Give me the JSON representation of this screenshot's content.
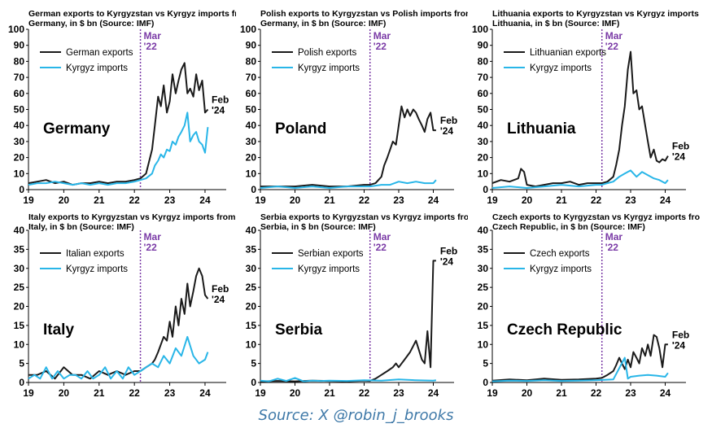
{
  "source": "Source: X @robin_j_brooks",
  "colors": {
    "exports": "#1a1a1a",
    "imports": "#29b6e8",
    "marker": "#7a3aa6",
    "text": "#000000"
  },
  "chart_data": [
    {
      "type": "line",
      "title": "German exports to Kyrgyzstan vs Kyrgyz imports from Germany, in $ bn (Source: IMF)",
      "country": "Germany",
      "ylim": [
        0,
        100
      ],
      "yticks": [
        0,
        10,
        20,
        30,
        40,
        50,
        60,
        70,
        80,
        90,
        100
      ],
      "xlim": [
        19,
        24.6
      ],
      "xticks": [
        "19",
        "20",
        "21",
        "22",
        "23",
        "24"
      ],
      "marker": {
        "x": 22.17,
        "label": [
          "Mar",
          "'22"
        ]
      },
      "end_label": [
        "Feb",
        "'24"
      ],
      "series": [
        {
          "name": "German exports",
          "x": [
            19.0,
            19.25,
            19.5,
            19.75,
            20.0,
            20.25,
            20.5,
            20.75,
            21.0,
            21.25,
            21.5,
            21.75,
            22.0,
            22.17,
            22.33,
            22.5,
            22.58,
            22.67,
            22.75,
            22.83,
            22.92,
            23.0,
            23.08,
            23.17,
            23.25,
            23.33,
            23.42,
            23.5,
            23.58,
            23.67,
            23.75,
            23.83,
            23.92,
            24.0,
            24.08
          ],
          "y": [
            4,
            5,
            6,
            4,
            5,
            3,
            4,
            4,
            5,
            4,
            5,
            5,
            6,
            7,
            10,
            25,
            40,
            58,
            52,
            65,
            48,
            55,
            72,
            60,
            68,
            75,
            79,
            60,
            63,
            58,
            72,
            62,
            68,
            48,
            50
          ]
        },
        {
          "name": "Kyrgyz imports",
          "x": [
            19.0,
            19.25,
            19.5,
            19.75,
            20.0,
            20.25,
            20.5,
            20.75,
            21.0,
            21.25,
            21.5,
            21.75,
            22.0,
            22.17,
            22.33,
            22.5,
            22.58,
            22.67,
            22.75,
            22.83,
            22.92,
            23.0,
            23.08,
            23.17,
            23.25,
            23.33,
            23.42,
            23.5,
            23.58,
            23.67,
            23.75,
            23.83,
            23.92,
            24.0,
            24.08
          ],
          "y": [
            3,
            4,
            4,
            5,
            4,
            3,
            4,
            3,
            4,
            3,
            4,
            4,
            5,
            6,
            7,
            10,
            15,
            18,
            22,
            20,
            25,
            24,
            30,
            28,
            33,
            36,
            40,
            48,
            30,
            34,
            36,
            30,
            28,
            23,
            39
          ]
        }
      ]
    },
    {
      "type": "line",
      "title": "Polish exports to Kyrgyzstan vs Polish imports from Germany, in $ bn (Source: IMF)",
      "country": "Poland",
      "ylim": [
        0,
        100
      ],
      "yticks": [
        0,
        10,
        20,
        30,
        40,
        50,
        60,
        70,
        80,
        90,
        100
      ],
      "xlim": [
        19,
        24.6
      ],
      "xticks": [
        "19",
        "20",
        "21",
        "22",
        "23",
        "24"
      ],
      "marker": {
        "x": 22.17,
        "label": [
          "Mar",
          "'22"
        ]
      },
      "end_label": [
        "Feb",
        "'24"
      ],
      "series": [
        {
          "name": "Polish exports",
          "x": [
            19.0,
            19.5,
            20.0,
            20.5,
            21.0,
            21.5,
            22.0,
            22.17,
            22.33,
            22.5,
            22.58,
            22.67,
            22.75,
            22.83,
            22.92,
            23.0,
            23.08,
            23.17,
            23.25,
            23.33,
            23.42,
            23.5,
            23.58,
            23.67,
            23.75,
            23.83,
            23.92,
            24.0,
            24.08
          ],
          "y": [
            2,
            2,
            2,
            3,
            2,
            2,
            3,
            3,
            4,
            8,
            15,
            20,
            25,
            30,
            28,
            40,
            52,
            45,
            50,
            46,
            50,
            48,
            44,
            40,
            36,
            44,
            48,
            37,
            37
          ]
        },
        {
          "name": "Kyrgyz imports",
          "x": [
            19.0,
            19.5,
            20.0,
            20.5,
            21.0,
            21.5,
            22.0,
            22.17,
            22.5,
            22.75,
            23.0,
            23.25,
            23.5,
            23.75,
            24.0,
            24.08
          ],
          "y": [
            1,
            2,
            1,
            2,
            1,
            2,
            2,
            2,
            3,
            3,
            5,
            4,
            5,
            4,
            4,
            6
          ]
        }
      ]
    },
    {
      "type": "line",
      "title": "Lithuania exports to Kyrgyzstan vs Kyrgyz imports from Lithuania, in $ bn (Source: IMF)",
      "country": "Lithuania",
      "ylim": [
        0,
        100
      ],
      "yticks": [
        0,
        10,
        20,
        30,
        40,
        50,
        60,
        70,
        80,
        90,
        100
      ],
      "xlim": [
        19,
        24.6
      ],
      "xticks": [
        "19",
        "20",
        "21",
        "22",
        "23",
        "24"
      ],
      "marker": {
        "x": 22.17,
        "label": [
          "Mar",
          "'22"
        ]
      },
      "end_label": [
        "Feb",
        "'24"
      ],
      "series": [
        {
          "name": "Lithuanian exports",
          "x": [
            19.0,
            19.25,
            19.5,
            19.75,
            19.83,
            19.92,
            20.0,
            20.25,
            20.5,
            20.75,
            21.0,
            21.25,
            21.5,
            21.75,
            22.0,
            22.17,
            22.33,
            22.5,
            22.58,
            22.67,
            22.75,
            22.83,
            22.92,
            23.0,
            23.08,
            23.17,
            23.25,
            23.33,
            23.42,
            23.5,
            23.58,
            23.67,
            23.75,
            23.83,
            23.92,
            24.0,
            24.08
          ],
          "y": [
            4,
            6,
            5,
            7,
            13,
            11,
            3,
            2,
            3,
            4,
            4,
            5,
            3,
            4,
            4,
            4,
            5,
            8,
            15,
            25,
            40,
            52,
            75,
            86,
            60,
            62,
            50,
            52,
            40,
            30,
            20,
            25,
            18,
            17,
            19,
            18,
            21
          ]
        },
        {
          "name": "Kyrgyz imports",
          "x": [
            19.0,
            19.5,
            20.0,
            20.5,
            21.0,
            21.5,
            22.0,
            22.17,
            22.33,
            22.5,
            22.67,
            22.83,
            23.0,
            23.17,
            23.33,
            23.5,
            23.67,
            23.83,
            24.0,
            24.08
          ],
          "y": [
            1,
            2,
            1,
            2,
            3,
            2,
            3,
            3,
            4,
            5,
            8,
            10,
            12,
            8,
            11,
            9,
            7,
            6,
            4,
            6
          ]
        }
      ]
    },
    {
      "type": "line",
      "title": "Italy exports to Kyrgyzstan vs Kyrgyz imports from Italy, in $ bn (Source: IMF)",
      "country": "Italy",
      "ylim": [
        0,
        40
      ],
      "yticks": [
        0,
        5,
        10,
        15,
        20,
        25,
        30,
        35,
        40
      ],
      "xlim": [
        19,
        24.6
      ],
      "xticks": [
        "19",
        "20",
        "21",
        "22",
        "23",
        "24"
      ],
      "marker": {
        "x": 22.17,
        "label": [
          "Mar",
          "'22"
        ]
      },
      "end_label": [
        "Feb",
        "'24"
      ],
      "series": [
        {
          "name": "Italian exports",
          "x": [
            19.0,
            19.25,
            19.5,
            19.75,
            20.0,
            20.25,
            20.5,
            20.75,
            21.0,
            21.25,
            21.5,
            21.75,
            22.0,
            22.17,
            22.33,
            22.5,
            22.58,
            22.67,
            22.75,
            22.83,
            22.92,
            23.0,
            23.08,
            23.17,
            23.25,
            23.33,
            23.42,
            23.5,
            23.58,
            23.67,
            23.75,
            23.83,
            23.92,
            24.0,
            24.08
          ],
          "y": [
            2,
            2,
            3,
            1,
            4,
            2,
            2,
            1,
            3,
            2,
            3,
            2,
            3,
            3,
            4,
            5,
            6,
            8,
            10,
            12,
            11,
            16,
            12,
            20,
            15,
            22,
            18,
            26,
            20,
            24,
            28,
            30,
            28,
            23,
            22
          ]
        },
        {
          "name": "Kyrgyz imports",
          "x": [
            19.0,
            19.17,
            19.33,
            19.5,
            19.67,
            19.83,
            20.0,
            20.17,
            20.33,
            20.5,
            20.67,
            20.83,
            21.0,
            21.17,
            21.33,
            21.5,
            21.67,
            21.83,
            22.0,
            22.17,
            22.33,
            22.5,
            22.67,
            22.83,
            23.0,
            23.17,
            23.33,
            23.5,
            23.67,
            23.83,
            24.0,
            24.08
          ],
          "y": [
            1,
            2,
            1,
            4,
            1,
            3,
            1,
            2,
            2,
            1,
            3,
            1,
            2,
            4,
            1,
            3,
            1,
            4,
            2,
            3,
            4,
            5,
            4,
            7,
            5,
            9,
            7,
            12,
            7,
            5,
            6,
            8
          ]
        }
      ]
    },
    {
      "type": "line",
      "title": "Serbia exports to Kyrgyzstan vs Kyrgyz imports from Serbia, in $ bn (Source: IMF)",
      "country": "Serbia",
      "ylim": [
        0,
        40
      ],
      "yticks": [
        0,
        5,
        10,
        15,
        20,
        25,
        30,
        35,
        40
      ],
      "xlim": [
        19,
        24.6
      ],
      "xticks": [
        "19",
        "20",
        "21",
        "22",
        "23",
        "24"
      ],
      "marker": {
        "x": 22.17,
        "label": [
          "Mar",
          "'22"
        ]
      },
      "end_label": [
        "Feb",
        "'24"
      ],
      "series": [
        {
          "name": "Serbian exports",
          "x": [
            19.0,
            19.5,
            20.0,
            20.5,
            21.0,
            21.5,
            22.0,
            22.17,
            22.33,
            22.5,
            22.67,
            22.83,
            22.92,
            23.0,
            23.17,
            23.33,
            23.5,
            23.67,
            23.75,
            23.83,
            23.92,
            24.0,
            24.08
          ],
          "y": [
            0.3,
            0.4,
            0.3,
            0.5,
            0.4,
            0.3,
            0.5,
            0.4,
            1.0,
            2.0,
            3.0,
            4.0,
            5.0,
            4.0,
            6.0,
            8.0,
            11.0,
            6.0,
            5.0,
            13.5,
            4.0,
            32.0,
            32.0
          ]
        },
        {
          "name": "Kyrgyz imports",
          "x": [
            19.0,
            19.25,
            19.5,
            19.75,
            20.0,
            20.25,
            20.5,
            20.75,
            21.0,
            21.5,
            22.0,
            22.5,
            23.0,
            23.5,
            24.0,
            24.08
          ],
          "y": [
            0.5,
            0.3,
            1.0,
            0.4,
            1.2,
            0.3,
            0.5,
            0.4,
            0.5,
            0.4,
            0.6,
            0.5,
            0.8,
            0.6,
            0.5,
            0.6
          ]
        }
      ]
    },
    {
      "type": "line",
      "title": "Czech exports to Kyrgyzstan vs Kyrgyz imports from Czech Republic, in $ bn (Source: IMF)",
      "country": "Czech Republic",
      "ylim": [
        0,
        40
      ],
      "yticks": [
        0,
        5,
        10,
        15,
        20,
        25,
        30,
        35,
        40
      ],
      "xlim": [
        19,
        24.6
      ],
      "xticks": [
        "19",
        "20",
        "21",
        "22",
        "23",
        "24"
      ],
      "marker": {
        "x": 22.17,
        "label": [
          "Mar",
          "'22"
        ]
      },
      "end_label": [
        "Feb",
        "'24"
      ],
      "series": [
        {
          "name": "Czech exports",
          "x": [
            19.0,
            19.5,
            20.0,
            20.5,
            21.0,
            21.5,
            22.0,
            22.17,
            22.33,
            22.5,
            22.58,
            22.67,
            22.75,
            22.83,
            22.92,
            23.0,
            23.08,
            23.17,
            23.25,
            23.33,
            23.42,
            23.5,
            23.58,
            23.67,
            23.75,
            23.83,
            23.92,
            24.0,
            24.08
          ],
          "y": [
            0.5,
            0.8,
            0.6,
            1.0,
            0.7,
            0.8,
            1.0,
            1.2,
            2.0,
            3.0,
            4.5,
            6.5,
            5.0,
            3.5,
            6.0,
            4.0,
            8.0,
            6.5,
            5.0,
            9.0,
            7.0,
            10.0,
            7.0,
            12.5,
            12.0,
            9.0,
            4.0,
            10.0,
            10.0
          ]
        },
        {
          "name": "Kyrgyz imports",
          "x": [
            19.0,
            19.5,
            20.0,
            20.5,
            21.0,
            21.5,
            22.0,
            22.5,
            22.83,
            22.92,
            23.0,
            23.25,
            23.5,
            23.75,
            24.0,
            24.08
          ],
          "y": [
            0.3,
            0.5,
            0.4,
            0.6,
            0.4,
            0.5,
            0.6,
            0.8,
            6.5,
            1.0,
            1.5,
            1.8,
            2.0,
            1.8,
            1.5,
            2.5
          ]
        }
      ]
    }
  ]
}
